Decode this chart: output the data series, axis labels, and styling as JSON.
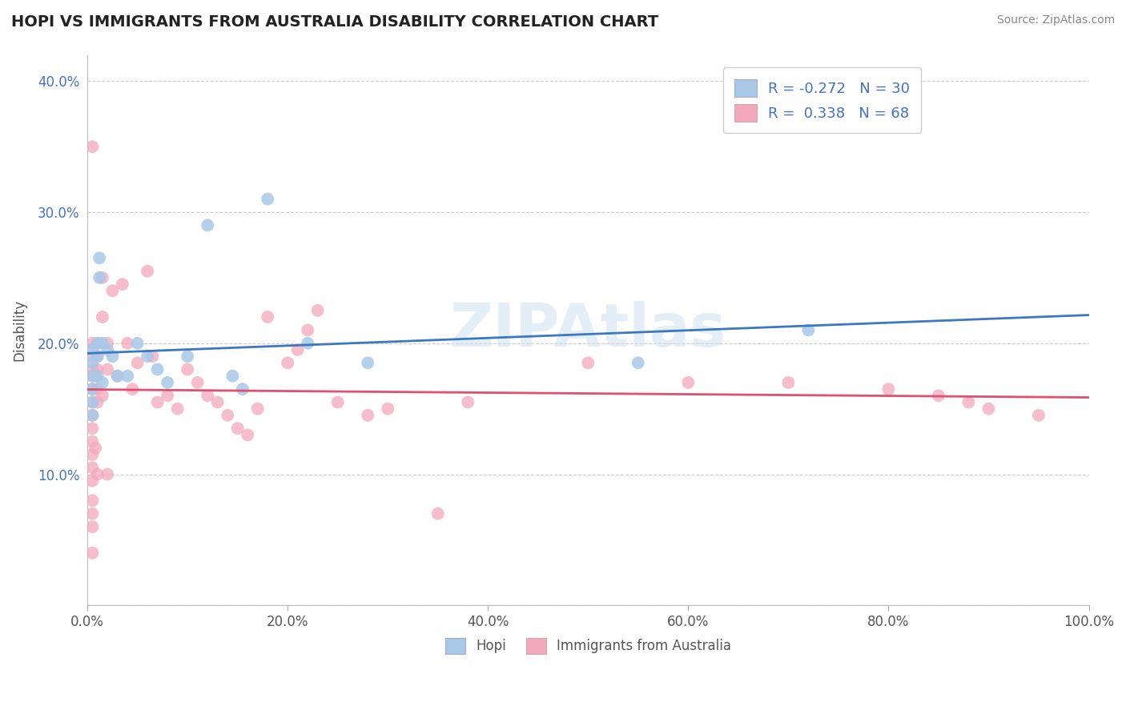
{
  "title": "HOPI VS IMMIGRANTS FROM AUSTRALIA DISABILITY CORRELATION CHART",
  "source": "Source: ZipAtlas.com",
  "ylabel": "Disability",
  "xlim": [
    0.0,
    1.0
  ],
  "ylim": [
    0.0,
    0.42
  ],
  "xticks": [
    0.0,
    0.2,
    0.4,
    0.6,
    0.8,
    1.0
  ],
  "xtick_labels": [
    "0.0%",
    "20.0%",
    "40.0%",
    "60.0%",
    "80.0%",
    "100.0%"
  ],
  "yticks": [
    0.0,
    0.1,
    0.2,
    0.3,
    0.4
  ],
  "ytick_labels": [
    "",
    "10.0%",
    "20.0%",
    "30.0%",
    "40.0%"
  ],
  "hopi_R": -0.272,
  "hopi_N": 30,
  "aus_R": 0.338,
  "aus_N": 68,
  "hopi_color": "#a8c8e8",
  "aus_color": "#f4a8bc",
  "hopi_line_color": "#3a78bf",
  "aus_line_color": "#e05070",
  "hopi_x": [
    0.005,
    0.005,
    0.005,
    0.005,
    0.005,
    0.005,
    0.01,
    0.01,
    0.01,
    0.012,
    0.012,
    0.015,
    0.015,
    0.02,
    0.025,
    0.03,
    0.04,
    0.05,
    0.06,
    0.07,
    0.08,
    0.1,
    0.12,
    0.145,
    0.155,
    0.18,
    0.22,
    0.28,
    0.55,
    0.72
  ],
  "hopi_y": [
    0.195,
    0.185,
    0.175,
    0.165,
    0.155,
    0.145,
    0.2,
    0.19,
    0.175,
    0.265,
    0.25,
    0.2,
    0.17,
    0.195,
    0.19,
    0.175,
    0.175,
    0.2,
    0.19,
    0.18,
    0.17,
    0.19,
    0.29,
    0.175,
    0.165,
    0.31,
    0.2,
    0.185,
    0.185,
    0.21
  ],
  "aus_x": [
    0.005,
    0.005,
    0.005,
    0.005,
    0.005,
    0.005,
    0.005,
    0.005,
    0.005,
    0.005,
    0.005,
    0.005,
    0.005,
    0.005,
    0.005,
    0.005,
    0.005,
    0.008,
    0.008,
    0.01,
    0.01,
    0.01,
    0.01,
    0.01,
    0.01,
    0.015,
    0.015,
    0.015,
    0.02,
    0.02,
    0.02,
    0.025,
    0.03,
    0.035,
    0.04,
    0.045,
    0.05,
    0.06,
    0.065,
    0.07,
    0.08,
    0.09,
    0.1,
    0.11,
    0.12,
    0.13,
    0.14,
    0.15,
    0.16,
    0.17,
    0.18,
    0.2,
    0.21,
    0.22,
    0.23,
    0.25,
    0.28,
    0.3,
    0.35,
    0.38,
    0.5,
    0.6,
    0.7,
    0.8,
    0.85,
    0.88,
    0.9,
    0.95
  ],
  "aus_y": [
    0.35,
    0.2,
    0.19,
    0.18,
    0.175,
    0.165,
    0.155,
    0.145,
    0.135,
    0.125,
    0.115,
    0.105,
    0.095,
    0.08,
    0.07,
    0.06,
    0.04,
    0.175,
    0.12,
    0.2,
    0.19,
    0.18,
    0.165,
    0.155,
    0.1,
    0.25,
    0.22,
    0.16,
    0.2,
    0.18,
    0.1,
    0.24,
    0.175,
    0.245,
    0.2,
    0.165,
    0.185,
    0.255,
    0.19,
    0.155,
    0.16,
    0.15,
    0.18,
    0.17,
    0.16,
    0.155,
    0.145,
    0.135,
    0.13,
    0.15,
    0.22,
    0.185,
    0.195,
    0.21,
    0.225,
    0.155,
    0.145,
    0.15,
    0.07,
    0.155,
    0.185,
    0.17,
    0.17,
    0.165,
    0.16,
    0.155,
    0.15,
    0.145
  ]
}
